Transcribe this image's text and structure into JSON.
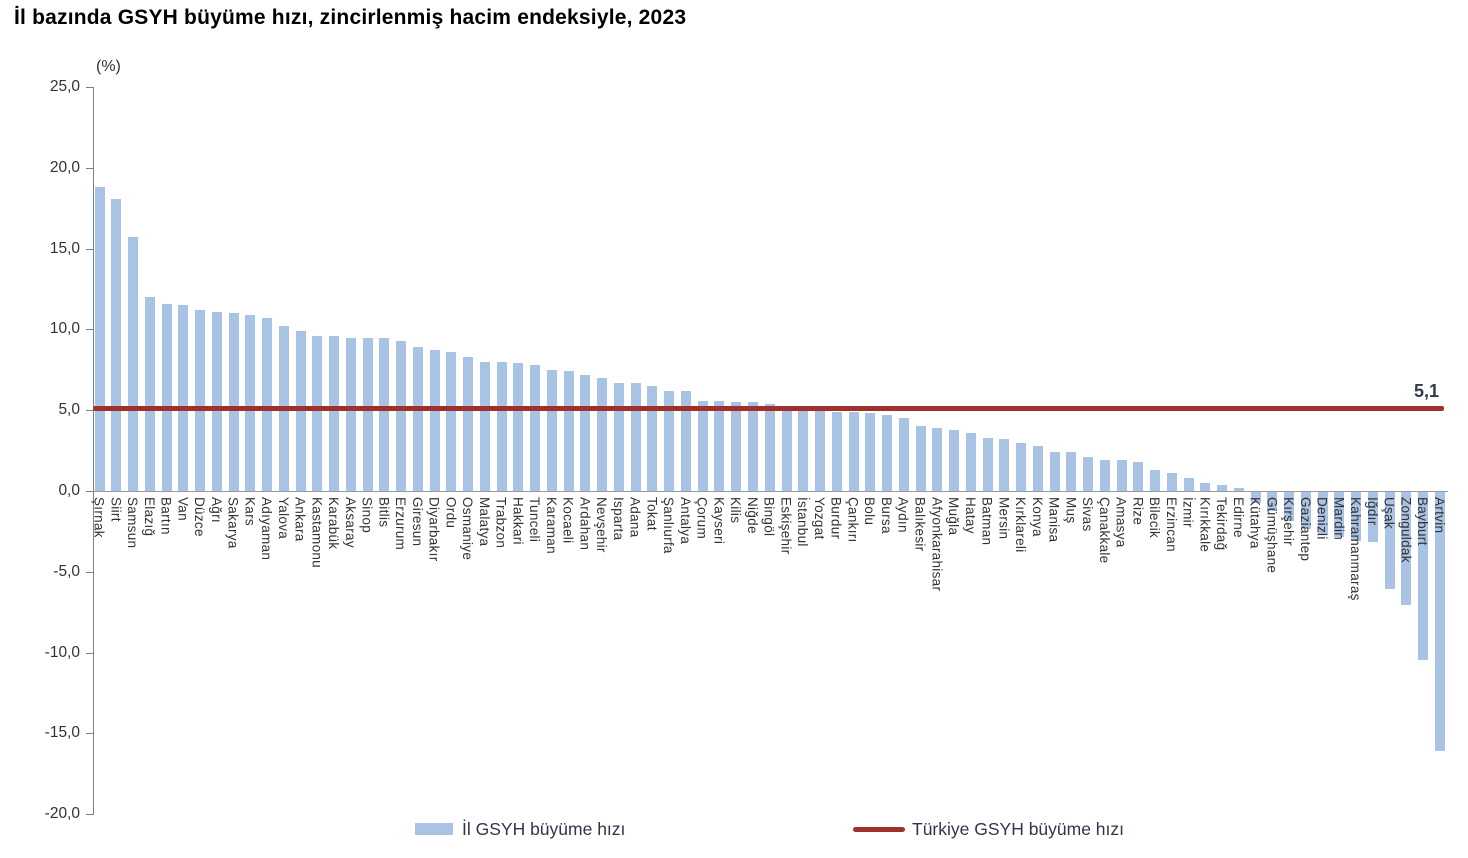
{
  "title": "İl bazında GSYH büyüme hızı, zincirlenmiş hacim endeksiyle, 2023",
  "unit_label": "(%)",
  "colors": {
    "bar": "#a9c3e4",
    "reference_line": "#a0302c",
    "axis": "#808080",
    "text": "#333333"
  },
  "y_axis": {
    "min": -20,
    "max": 25,
    "step": 5,
    "tick_labels": [
      "25,0",
      "20,0",
      "15,0",
      "10,0",
      "5,0",
      "0,0",
      "-5,0",
      "-10,0",
      "-15,0",
      "-20,0"
    ]
  },
  "reference": {
    "label": "5,1",
    "value": 5.1
  },
  "legend": {
    "items": [
      {
        "label": "İl GSYH büyüme hızı",
        "swatch": "bar"
      },
      {
        "label": "Türkiye GSYH büyüme hızı",
        "swatch": "line"
      }
    ]
  },
  "chart_data": {
    "type": "bar",
    "title": "İl bazında GSYH büyüme hızı, zincirlenmiş hacim endeksiyle, 2023",
    "ylabel": "(%)",
    "ylim": [
      -20,
      25
    ],
    "grid": false,
    "legend_position": "bottom",
    "reference_line": {
      "name": "Türkiye GSYH büyüme hızı",
      "value": 5.1
    },
    "series_name": "İl GSYH büyüme hızı",
    "categories": [
      "Şırnak",
      "Siirt",
      "Samsun",
      "Elazığ",
      "Bartın",
      "Van",
      "Düzce",
      "Ağrı",
      "Sakarya",
      "Kars",
      "Adıyaman",
      "Yalova",
      "Ankara",
      "Kastamonu",
      "Karabük",
      "Aksaray",
      "Sinop",
      "Bitlis",
      "Erzurum",
      "Giresun",
      "Diyarbakır",
      "Ordu",
      "Osmaniye",
      "Malatya",
      "Trabzon",
      "Hakkari",
      "Tunceli",
      "Karaman",
      "Kocaeli",
      "Ardahan",
      "Nevşehir",
      "Isparta",
      "Adana",
      "Tokat",
      "Şanlıurfa",
      "Antalya",
      "Çorum",
      "Kayseri",
      "Kilis",
      "Niğde",
      "Bingöl",
      "Eskişehir",
      "İstanbul",
      "Yozgat",
      "Burdur",
      "Çankırı",
      "Bolu",
      "Bursa",
      "Aydın",
      "Balıkesir",
      "Afyonkarahisar",
      "Muğla",
      "Hatay",
      "Batman",
      "Mersin",
      "Kırklareli",
      "Konya",
      "Manisa",
      "Muş",
      "Sivas",
      "Çanakkale",
      "Amasya",
      "Rize",
      "Bilecik",
      "Erzincan",
      "İzmir",
      "Kırıkkale",
      "Tekirdağ",
      "Edirne",
      "Kütahya",
      "Gümüşhane",
      "Kırşehir",
      "Gaziantep",
      "Denizli",
      "Mardin",
      "Kahramanmaraş",
      "Iğdır",
      "Uşak",
      "Zonguldak",
      "Bayburt",
      "Artvin"
    ],
    "values": [
      18.8,
      18.1,
      15.7,
      12.0,
      11.6,
      11.5,
      11.2,
      11.1,
      11.0,
      10.9,
      10.7,
      10.2,
      9.9,
      9.6,
      9.6,
      9.5,
      9.5,
      9.5,
      9.3,
      8.9,
      8.7,
      8.6,
      8.3,
      8.0,
      8.0,
      7.9,
      7.8,
      7.5,
      7.4,
      7.2,
      7.0,
      6.7,
      6.7,
      6.5,
      6.2,
      6.2,
      5.6,
      5.6,
      5.5,
      5.5,
      5.4,
      5.0,
      5.0,
      5.0,
      4.9,
      4.9,
      4.8,
      4.7,
      4.5,
      4.0,
      3.9,
      3.8,
      3.6,
      3.3,
      3.2,
      3.0,
      2.8,
      2.4,
      2.4,
      2.1,
      1.9,
      1.9,
      1.8,
      1.3,
      1.1,
      0.8,
      0.5,
      0.4,
      0.2,
      -0.7,
      -1.2,
      -1.8,
      -2.3,
      -2.6,
      -2.8,
      -3.0,
      -3.1,
      -6.0,
      -7.0,
      -10.4,
      -16.0
    ]
  }
}
